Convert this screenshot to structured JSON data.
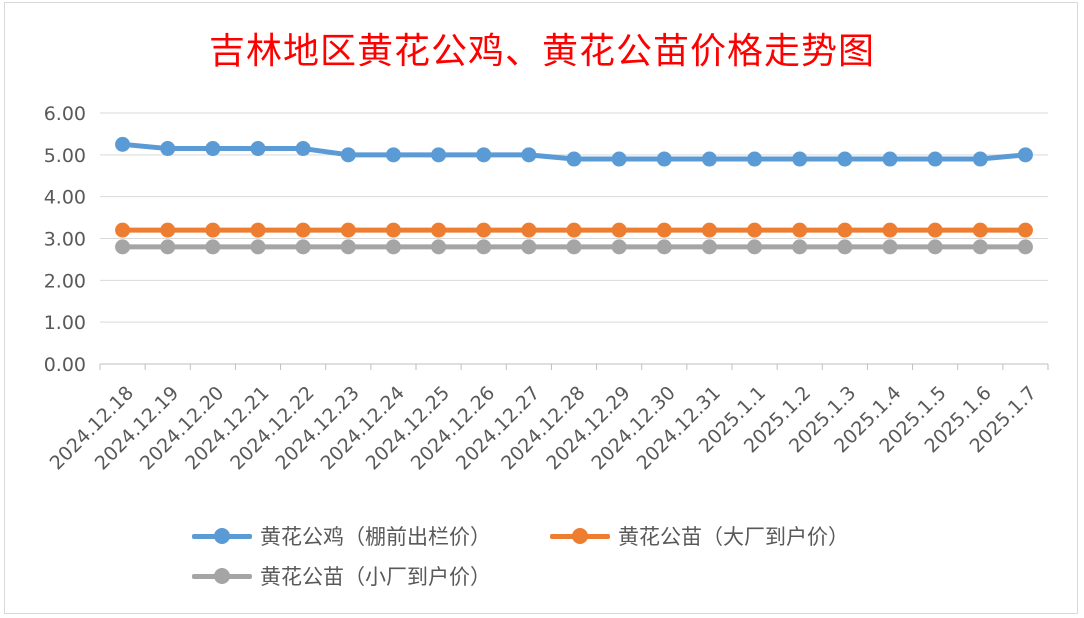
{
  "chart_data": {
    "type": "line",
    "title": "吉林地区黄花公鸡、黄花公苗价格走势图",
    "categories": [
      "2024.12.18",
      "2024.12.19",
      "2024.12.20",
      "2024.12.21",
      "2024.12.22",
      "2024.12.23",
      "2024.12.24",
      "2024.12.25",
      "2024.12.26",
      "2024.12.27",
      "2024.12.28",
      "2024.12.29",
      "2024.12.30",
      "2024.12.31",
      "2025.1.1",
      "2025.1.2",
      "2025.1.3",
      "2025.1.4",
      "2025.1.5",
      "2025.1.6",
      "2025.1.7"
    ],
    "ylim": [
      0,
      6
    ],
    "yticks": [
      "0.00",
      "1.00",
      "2.00",
      "3.00",
      "4.00",
      "5.00",
      "6.00"
    ],
    "grid": true,
    "legend_position": "bottom",
    "series": [
      {
        "name": "黄花公鸡（棚前出栏价）",
        "color": "#5b9bd5",
        "values": [
          5.25,
          5.15,
          5.15,
          5.15,
          5.15,
          5.0,
          5.0,
          5.0,
          5.0,
          5.0,
          4.9,
          4.9,
          4.9,
          4.9,
          4.9,
          4.9,
          4.9,
          4.9,
          4.9,
          4.9,
          5.0
        ]
      },
      {
        "name": "黄花公苗（大厂到户价）",
        "color": "#ed7d31",
        "values": [
          3.2,
          3.2,
          3.2,
          3.2,
          3.2,
          3.2,
          3.2,
          3.2,
          3.2,
          3.2,
          3.2,
          3.2,
          3.2,
          3.2,
          3.2,
          3.2,
          3.2,
          3.2,
          3.2,
          3.2,
          3.2
        ]
      },
      {
        "name": "黄花公苗（小厂到户价）",
        "color": "#a5a5a5",
        "values": [
          2.8,
          2.8,
          2.8,
          2.8,
          2.8,
          2.8,
          2.8,
          2.8,
          2.8,
          2.8,
          2.8,
          2.8,
          2.8,
          2.8,
          2.8,
          2.8,
          2.8,
          2.8,
          2.8,
          2.8,
          2.8
        ]
      }
    ]
  }
}
